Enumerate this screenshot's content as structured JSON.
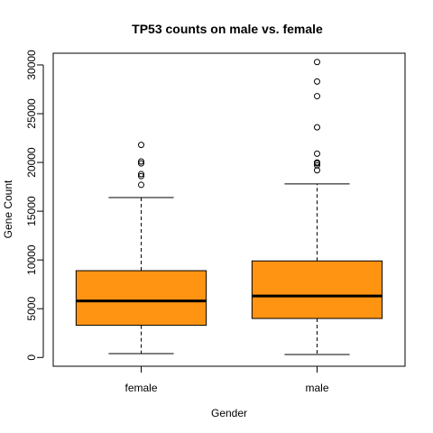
{
  "chart_data": {
    "type": "boxplot",
    "title": "TP53 counts on male vs. female",
    "xlabel": "Gender",
    "ylabel": "Gene Count",
    "categories": [
      "female",
      "male"
    ],
    "yticks": [
      0,
      5000,
      10000,
      15000,
      20000,
      25000,
      30000
    ],
    "ytick_labels": [
      "0",
      "5000",
      "10000",
      "15000",
      "20000",
      "25000",
      "30000"
    ],
    "ylim": [
      -900,
      31200
    ],
    "box_color": "#FF9412",
    "boxes": [
      {
        "name": "female",
        "whisker_low": 400,
        "q1": 3300,
        "median": 5800,
        "q3": 8900,
        "whisker_high": 16400,
        "outliers": [
          17700,
          18600,
          18800,
          19900,
          20100,
          21800
        ]
      },
      {
        "name": "male",
        "whisker_low": 300,
        "q1": 4000,
        "median": 6300,
        "q3": 9900,
        "whisker_high": 17800,
        "outliers": [
          19200,
          19700,
          19900,
          20000,
          20900,
          23600,
          26800,
          28300,
          30300
        ]
      }
    ],
    "grid": false,
    "legend": "none"
  }
}
